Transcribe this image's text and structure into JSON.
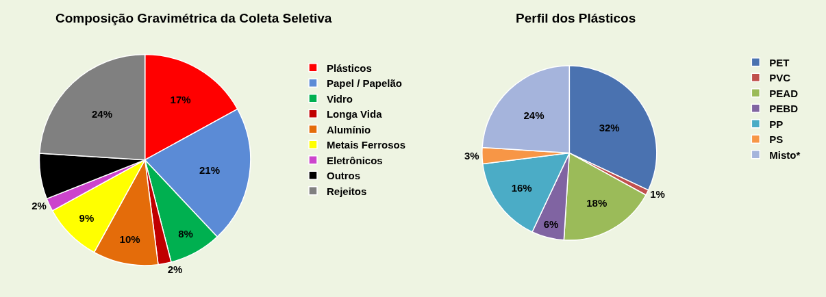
{
  "chart_data": [
    {
      "type": "pie",
      "title": "Composição Gravimétrica da Coleta Seletiva",
      "legend": "right",
      "categories": [
        "Plásticos",
        "Papel / Papelão",
        "Vidro",
        "Longa Vida",
        "Alumínio",
        "Metais Ferrosos",
        "Eletrônicos",
        "Outros",
        "Rejeitos"
      ],
      "values": [
        17,
        21,
        8,
        2,
        10,
        9,
        2,
        7,
        24
      ],
      "value_labels": [
        "17%",
        "21%",
        "8%",
        "2%",
        "10%",
        "9%",
        "2%",
        null,
        "24%"
      ],
      "colors": [
        "#ff0000",
        "#5b8bd6",
        "#00b050",
        "#c00000",
        "#e46c0a",
        "#ffff00",
        "#cc44cc",
        "#000000",
        "#808080"
      ]
    },
    {
      "type": "pie",
      "title": "Perfil dos Plásticos",
      "legend": "right",
      "categories": [
        "PET",
        "PVC",
        "PEAD",
        "PEBD",
        "PP",
        "PS",
        "Misto*"
      ],
      "values": [
        32,
        1,
        18,
        6,
        16,
        3,
        24
      ],
      "value_labels": [
        "32%",
        "1%",
        "18%",
        "6%",
        "16%",
        "3%",
        "24%"
      ],
      "colors": [
        "#4a72b0",
        "#c0504d",
        "#9bbb59",
        "#8064a2",
        "#4bacc6",
        "#f79646",
        "#a5b4dc"
      ]
    }
  ]
}
